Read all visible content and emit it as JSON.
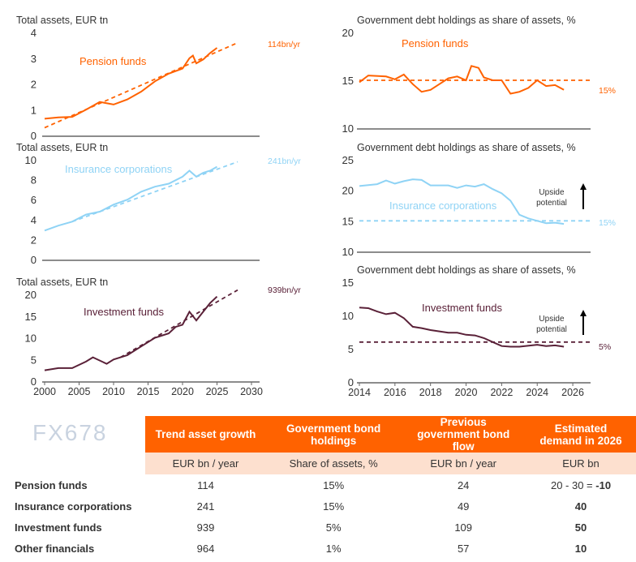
{
  "colors": {
    "pension": "#ff6200",
    "insurance": "#8fd3f5",
    "investment": "#5a2138",
    "header": "#ff6200",
    "subheader": "#fde0cf"
  },
  "chart_data": [
    {
      "type": "line",
      "title": "Total assets, EUR tn",
      "xlim": [
        2000,
        2030
      ],
      "ylim": [
        0,
        4
      ],
      "yticks": [
        "0",
        "1",
        "2",
        "3",
        "4"
      ],
      "series": [
        {
          "name": "Pension funds",
          "x": [
            2000,
            2002,
            2004,
            2006,
            2008,
            2010,
            2012,
            2014,
            2016,
            2018,
            2020,
            2021,
            2021.5,
            2022,
            2023,
            2024,
            2025
          ],
          "y": [
            0.65,
            0.7,
            0.72,
            1.0,
            1.3,
            1.2,
            1.4,
            1.7,
            2.1,
            2.4,
            2.6,
            3.0,
            3.1,
            2.8,
            2.95,
            3.2,
            3.4
          ]
        },
        {
          "trend": true,
          "x": [
            2000,
            2028
          ],
          "y": [
            0.3,
            3.6
          ]
        }
      ],
      "annotation": "114bn/yr"
    },
    {
      "type": "line",
      "title": "Total assets, EUR tn",
      "xlim": [
        2000,
        2030
      ],
      "ylim": [
        0,
        10
      ],
      "yticks": [
        "0",
        "2",
        "4",
        "6",
        "8",
        "10"
      ],
      "series": [
        {
          "name": "Insurance corporations",
          "x": [
            2000,
            2002,
            2004,
            2006,
            2008,
            2010,
            2012,
            2014,
            2016,
            2018,
            2020,
            2021,
            2022,
            2023,
            2024,
            2025
          ],
          "y": [
            2.9,
            3.4,
            3.8,
            4.5,
            4.8,
            5.5,
            6.0,
            6.8,
            7.3,
            7.6,
            8.3,
            8.9,
            8.3,
            8.7,
            8.9,
            9.3
          ]
        },
        {
          "trend": true,
          "x": [
            2004,
            2028
          ],
          "y": [
            3.8,
            9.8
          ]
        }
      ],
      "annotation": "241bn/yr"
    },
    {
      "type": "line",
      "title": "Total assets, EUR tn",
      "xlim": [
        2000,
        2030
      ],
      "ylim": [
        0,
        20
      ],
      "xticks": [
        "2000",
        "2005",
        "2010",
        "2015",
        "2020",
        "2025",
        "2030"
      ],
      "yticks": [
        "0",
        "5",
        "10",
        "15",
        "20"
      ],
      "series": [
        {
          "name": "Investment funds",
          "x": [
            2000,
            2002,
            2004,
            2006,
            2007,
            2009,
            2010,
            2012,
            2014,
            2016,
            2018,
            2019,
            2020,
            2021,
            2022,
            2023,
            2024,
            2025
          ],
          "y": [
            2.5,
            3,
            3,
            4.5,
            5.5,
            4,
            5,
            6,
            8,
            10,
            11,
            12.5,
            13,
            16,
            14,
            16,
            18,
            19.5
          ]
        },
        {
          "trend": true,
          "x": [
            2011,
            2028
          ],
          "y": [
            5.5,
            21
          ]
        }
      ],
      "annotation": "939bn/yr"
    },
    {
      "type": "line",
      "title": "Government debt holdings as share of assets, %",
      "xlim": [
        2014,
        2027
      ],
      "ylim": [
        10,
        20
      ],
      "yticks": [
        "10",
        "15",
        "20"
      ],
      "series": [
        {
          "name": "Pension funds",
          "x": [
            2014,
            2014.5,
            2015.5,
            2016,
            2016.5,
            2017,
            2017.5,
            2018,
            2018.5,
            2019,
            2019.5,
            2020,
            2020.3,
            2020.7,
            2021,
            2021.5,
            2022,
            2022.5,
            2023,
            2023.5,
            2024,
            2024.5,
            2025,
            2025.5
          ],
          "y": [
            14.8,
            15.5,
            15.4,
            15.1,
            15.6,
            14.6,
            13.8,
            14,
            14.6,
            15.2,
            15.4,
            15,
            16.5,
            16.3,
            15.3,
            15,
            15,
            13.6,
            13.8,
            14.2,
            15,
            14.4,
            14.5,
            14
          ]
        },
        {
          "target": true,
          "x": [
            2014,
            2027
          ],
          "y": [
            15,
            15
          ]
        }
      ],
      "annotation": "15%"
    },
    {
      "type": "line",
      "title": "Government debt holdings as share of assets, %",
      "xlim": [
        2014,
        2027
      ],
      "ylim": [
        10,
        25
      ],
      "yticks": [
        "10",
        "15",
        "20",
        "25"
      ],
      "series": [
        {
          "name": "Insurance corporations",
          "x": [
            2014,
            2015,
            2015.5,
            2016,
            2016.5,
            2017,
            2017.5,
            2018,
            2019,
            2019.5,
            2020,
            2020.5,
            2021,
            2021.5,
            2022,
            2022.5,
            2023,
            2023.5,
            2024,
            2024.5,
            2025,
            2025.5
          ],
          "y": [
            20.7,
            21,
            21.6,
            21.1,
            21.5,
            21.8,
            21.7,
            20.8,
            20.8,
            20.4,
            20.8,
            20.6,
            21,
            20.2,
            19.5,
            18.3,
            16,
            15.4,
            15,
            14.6,
            14.7,
            14.5
          ]
        },
        {
          "target": true,
          "x": [
            2014,
            2027
          ],
          "y": [
            15,
            15
          ]
        }
      ],
      "annotation": "15%",
      "note": "Upside potential"
    },
    {
      "type": "line",
      "title": "Government debt holdings as share of assets, %",
      "xlim": [
        2014,
        2027
      ],
      "ylim": [
        0,
        15
      ],
      "xticks": [
        "2014",
        "2016",
        "2018",
        "2020",
        "2022",
        "2024",
        "2026"
      ],
      "yticks": [
        "0",
        "5",
        "10",
        "15"
      ],
      "series": [
        {
          "name": "Investment funds",
          "x": [
            2014,
            2014.5,
            2015,
            2015.5,
            2016,
            2016.5,
            2017,
            2017.5,
            2018,
            2019,
            2019.5,
            2020,
            2020.5,
            2021,
            2021.5,
            2022,
            2022.5,
            2023,
            2024,
            2024.5,
            2025,
            2025.5
          ],
          "y": [
            11.2,
            11.1,
            10.6,
            10.2,
            10.4,
            9.6,
            8.3,
            8.1,
            7.8,
            7.4,
            7.4,
            7.1,
            7.0,
            6.6,
            6.0,
            5.4,
            5.3,
            5.3,
            5.6,
            5.4,
            5.5,
            5.3
          ]
        },
        {
          "target": true,
          "x": [
            2014,
            2027
          ],
          "y": [
            6,
            6
          ]
        }
      ],
      "annotation": "5%",
      "note": "Upside potential"
    }
  ],
  "table": {
    "headers": [
      "Trend asset growth",
      "Government bond holdings",
      "Previous government bond flow",
      "Estimated demand in 2026"
    ],
    "units": [
      "EUR bn / year",
      "Share of assets, %",
      "EUR bn / year",
      "EUR bn"
    ],
    "rows": [
      {
        "label": "Pension funds",
        "cells": [
          "114",
          "15%",
          "24"
        ],
        "demand_prefix": "20 - 30 = ",
        "demand": "-10"
      },
      {
        "label": "Insurance corporations",
        "cells": [
          "241",
          "15%",
          "49"
        ],
        "demand": "40"
      },
      {
        "label": "Investment funds",
        "cells": [
          "939",
          "5%",
          "109"
        ],
        "demand": "50"
      },
      {
        "label": "Other financials",
        "cells": [
          "964",
          "1%",
          "57"
        ],
        "demand": "10"
      }
    ]
  },
  "watermark": "FX678"
}
